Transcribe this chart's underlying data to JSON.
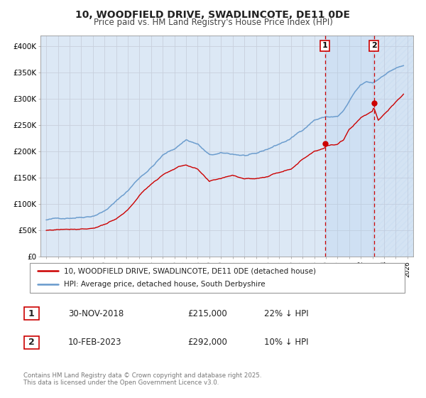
{
  "title": "10, WOODFIELD DRIVE, SWADLINCOTE, DE11 0DE",
  "subtitle": "Price paid vs. HM Land Registry's House Price Index (HPI)",
  "legend_line1": "10, WOODFIELD DRIVE, SWADLINCOTE, DE11 0DE (detached house)",
  "legend_line2": "HPI: Average price, detached house, South Derbyshire",
  "sale1_date": "30-NOV-2018",
  "sale1_price": "£215,000",
  "sale1_hpi": "22% ↓ HPI",
  "sale2_date": "10-FEB-2023",
  "sale2_price": "£292,000",
  "sale2_hpi": "10% ↓ HPI",
  "copyright": "Contains HM Land Registry data © Crown copyright and database right 2025.\nThis data is licensed under the Open Government Licence v3.0.",
  "red_color": "#cc0000",
  "blue_color": "#6699cc",
  "bg_color": "#dce8f5",
  "grid_color": "#bbbbcc",
  "marker1_x": 2018.917,
  "marker1_y": 215000,
  "marker2_x": 2023.12,
  "marker2_y": 292000,
  "vline1_x": 2018.917,
  "vline2_x": 2023.12,
  "xlim": [
    1994.5,
    2026.5
  ],
  "ylim": [
    0,
    420000
  ],
  "yticks": [
    0,
    50000,
    100000,
    150000,
    200000,
    250000,
    300000,
    350000,
    400000
  ],
  "ytick_labels": [
    "£0",
    "£50K",
    "£100K",
    "£150K",
    "£200K",
    "£250K",
    "£300K",
    "£350K",
    "£400K"
  ],
  "xticks": [
    1995,
    1996,
    1997,
    1998,
    1999,
    2000,
    2001,
    2002,
    2003,
    2004,
    2005,
    2006,
    2007,
    2008,
    2009,
    2010,
    2011,
    2012,
    2013,
    2014,
    2015,
    2016,
    2017,
    2018,
    2019,
    2020,
    2021,
    2022,
    2023,
    2024,
    2025,
    2026
  ]
}
